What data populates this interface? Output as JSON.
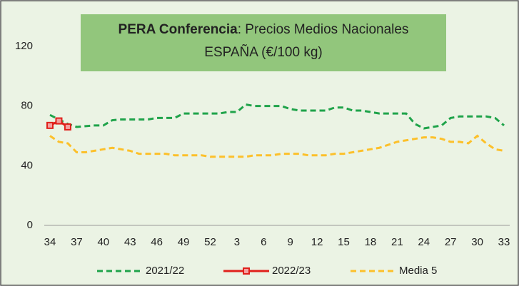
{
  "chart_data": {
    "type": "line",
    "title": "PERA Conferencia",
    "title_suffix": ": Precios Medios Nacionales",
    "subtitle": "ESPAÑA (€/100 kg)",
    "categories": [
      "34",
      null,
      null,
      "37",
      null,
      null,
      "40",
      null,
      null,
      "43",
      null,
      null,
      "46",
      null,
      null,
      "49",
      null,
      null,
      "52",
      null,
      null,
      "3",
      null,
      null,
      "6",
      null,
      null,
      "9",
      null,
      null,
      "12",
      null,
      null,
      "15",
      null,
      null,
      "18",
      null,
      null,
      "21",
      null,
      null,
      "24",
      null,
      null,
      "27",
      null,
      null,
      "30",
      null,
      null,
      "33"
    ],
    "series": [
      {
        "name": "2021/22",
        "color": "#1fa34a",
        "dash": true,
        "markers": false,
        "values": [
          74,
          71,
          68,
          66,
          66.5,
          67,
          67,
          70.5,
          71,
          71,
          71,
          71,
          72,
          72,
          72,
          75,
          75,
          75,
          75,
          75,
          76,
          76,
          81,
          80,
          80,
          80,
          80,
          78,
          77,
          77,
          77,
          77,
          79,
          79,
          77,
          77,
          76,
          75,
          75,
          75,
          75,
          68,
          65,
          66,
          67,
          72,
          73,
          73,
          73,
          73,
          72,
          67
        ]
      },
      {
        "name": "2022/23",
        "color": "#e0201b",
        "dash": false,
        "markers": true,
        "values": [
          67,
          70,
          66,
          null,
          null,
          null,
          null,
          null,
          null,
          null,
          null,
          null,
          null,
          null,
          null,
          null,
          null,
          null,
          null,
          null,
          null,
          null,
          null,
          null,
          null,
          null,
          null,
          null,
          null,
          null,
          null,
          null,
          null,
          null,
          null,
          null,
          null,
          null,
          null,
          null,
          null,
          null,
          null,
          null,
          null,
          null,
          null,
          null,
          null,
          null,
          null,
          null
        ]
      },
      {
        "name": "Media 5",
        "color": "#fcc02a",
        "dash": true,
        "markers": false,
        "values": [
          60,
          56,
          55,
          49,
          49,
          50,
          51,
          52,
          51,
          50,
          48,
          48,
          48,
          48,
          47,
          47,
          47,
          47,
          46,
          46,
          46,
          46,
          46,
          47,
          47,
          47,
          48,
          48,
          48,
          47,
          47,
          47,
          48,
          48,
          49,
          50,
          51,
          52,
          54,
          56,
          57,
          58,
          59,
          59,
          58,
          56,
          56,
          55,
          60,
          55,
          51,
          50
        ]
      }
    ],
    "ylim": [
      0,
      120
    ],
    "yticks": [
      0,
      40,
      80,
      120
    ],
    "grid": false
  }
}
